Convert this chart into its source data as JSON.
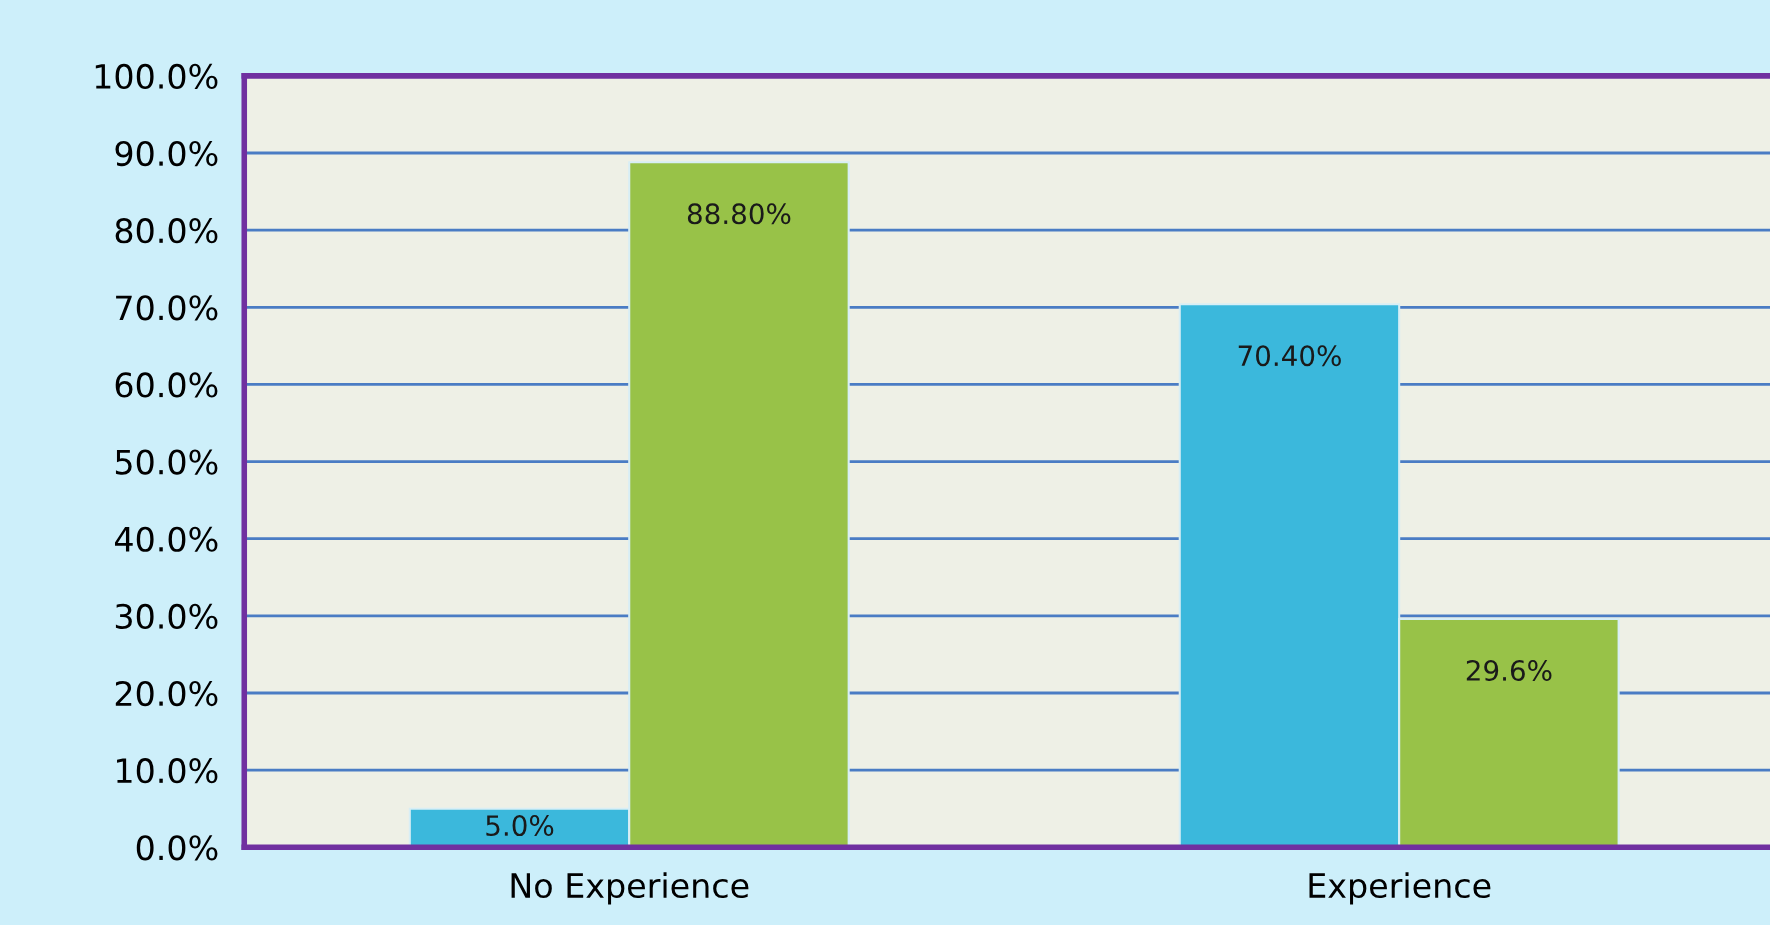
{
  "chart_data": {
    "type": "bar",
    "categories": [
      "No Experience",
      "Experience"
    ],
    "series": [
      {
        "color": "#3bb8dc",
        "values": [
          5.0,
          70.4
        ],
        "value_labels": [
          "5.0%",
          "70.40%"
        ]
      },
      {
        "color": "#98c248",
        "values": [
          88.8,
          29.6
        ],
        "value_labels": [
          "88.80%",
          "29.6%"
        ]
      }
    ],
    "ylim": [
      0,
      100
    ],
    "yticks": [
      {
        "value": 0,
        "label": "0.0%"
      },
      {
        "value": 10,
        "label": "10.0%"
      },
      {
        "value": 20,
        "label": "20.0%"
      },
      {
        "value": 30,
        "label": "30.0%"
      },
      {
        "value": 40,
        "label": "40.0%"
      },
      {
        "value": 50,
        "label": "50.0%"
      },
      {
        "value": 60,
        "label": "60.0%"
      },
      {
        "value": 70,
        "label": "70.0%"
      },
      {
        "value": 80,
        "label": "80.0%"
      },
      {
        "value": 90,
        "label": "90.0%"
      },
      {
        "value": 100,
        "label": "100.0%"
      }
    ],
    "grid": "y",
    "legend": false
  }
}
